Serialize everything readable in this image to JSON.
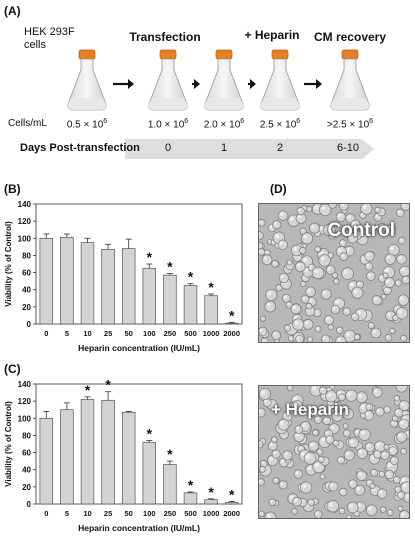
{
  "panels": {
    "A": "(A)",
    "B": "(B)",
    "C": "(C)",
    "D": "(D)"
  },
  "workflow": {
    "start_label": "HEK 293F\ncells",
    "step_titles": [
      "Transfection",
      "+ Heparin",
      "CM recovery"
    ],
    "cells_label": "Cells/mL",
    "densities": [
      {
        "mant": "0.5 × 10",
        "exp": "6"
      },
      {
        "mant": "1.0 × 10",
        "exp": "6"
      },
      {
        "mant": "2.0 × 10",
        "exp": "6"
      },
      {
        "mant": "2.5 × 10",
        "exp": "6"
      },
      {
        "mant": ">2.5 × 10",
        "exp": "6"
      }
    ],
    "days_label": "Days Post-transfection",
    "days": [
      "0",
      "1",
      "2",
      "6-10"
    ]
  },
  "micrographs": {
    "top_label": "Control",
    "bottom_label": "+ Heparin"
  },
  "colors": {
    "bar_fill": "#d3d3d3",
    "bar_stroke": "#555555",
    "flask_cap": "#e67e22",
    "timeline_bg": "#dedede",
    "micro_bg": "#b8b8b8"
  },
  "chart_data": [
    {
      "type": "bar",
      "ylabel": "Viability (% of Control)",
      "xlabel": "Heparin concentration (IU/mL)",
      "ylim": [
        0,
        140
      ],
      "yticks": [
        "0",
        "20",
        "40",
        "60",
        "80",
        "100",
        "120",
        "140"
      ],
      "categories": [
        "0",
        "5",
        "10",
        "25",
        "50",
        "100",
        "250",
        "500",
        "1000",
        "2000"
      ],
      "values": [
        100,
        101,
        95,
        87,
        88,
        65,
        57,
        45,
        33,
        1
      ],
      "errors": [
        5,
        4,
        5,
        6,
        11,
        5,
        2,
        2,
        2,
        1
      ],
      "significance": [
        "",
        "",
        "",
        "",
        "",
        "*",
        "*",
        "*",
        "*",
        "*"
      ]
    },
    {
      "type": "bar",
      "ylabel": "Viability (% of Control)",
      "xlabel": "Heparin concentration (IU/mL)",
      "ylim": [
        0,
        140
      ],
      "yticks": [
        "0",
        "20",
        "40",
        "60",
        "80",
        "100",
        "120",
        "140"
      ],
      "categories": [
        "0",
        "5",
        "10",
        "25",
        "50",
        "100",
        "250",
        "500",
        "1000",
        "2000"
      ],
      "values": [
        100,
        110,
        122,
        121,
        107,
        72,
        46,
        13,
        5,
        2
      ],
      "errors": [
        8,
        8,
        3,
        10,
        1,
        2,
        4,
        1,
        1,
        1
      ],
      "significance": [
        "",
        "",
        "*",
        "*",
        "",
        "*",
        "*",
        "*",
        "*",
        "*"
      ]
    }
  ]
}
